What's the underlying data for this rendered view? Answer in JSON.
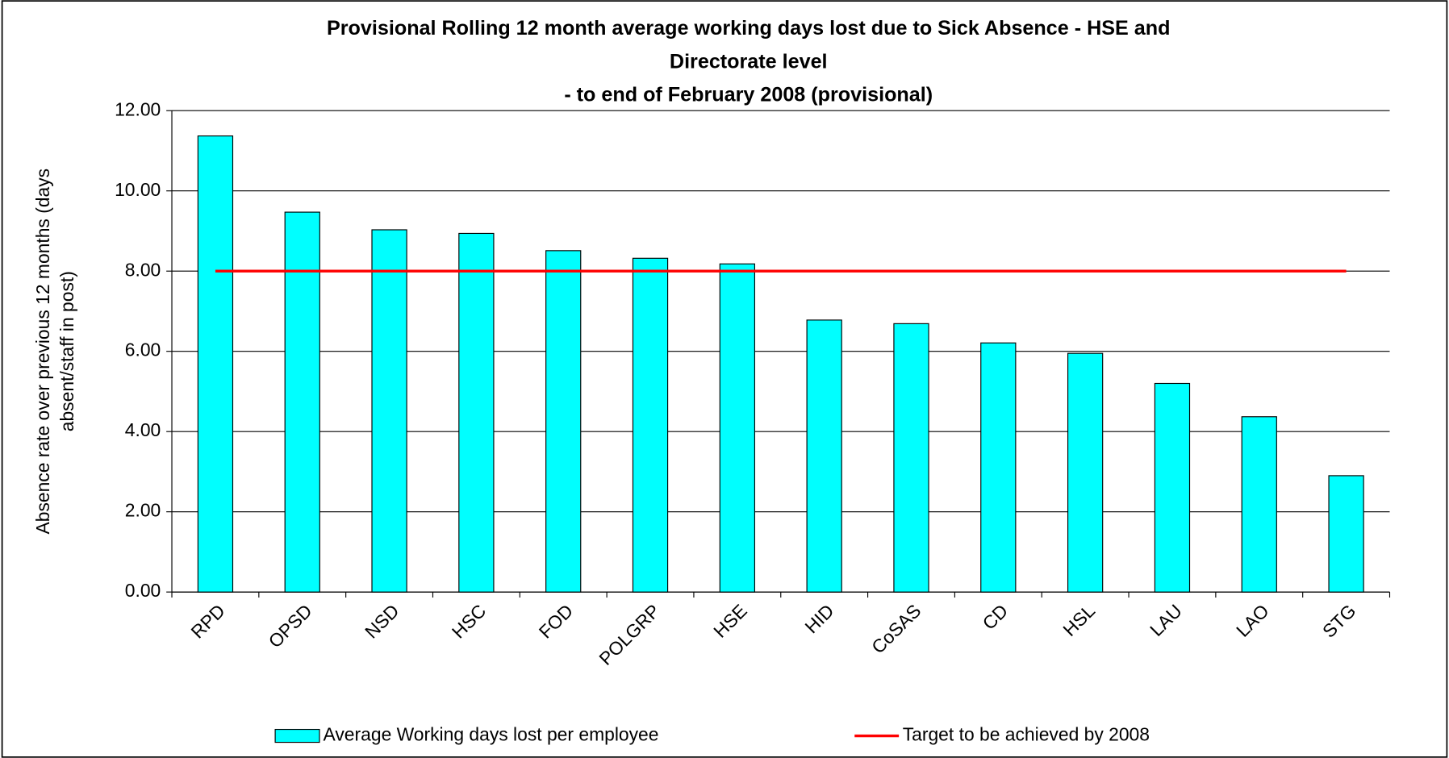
{
  "chart_data": {
    "type": "bar",
    "title": [
      "Provisional Rolling 12 month average working days lost due to Sick Absence - HSE and",
      "Directorate level",
      "- to end of February 2008 (provisional)"
    ],
    "y_label": [
      "Absence rate over previous 12 months (days",
      "absent/staff in post)"
    ],
    "categories": [
      "RPD",
      "OPSD",
      "NSD",
      "HSC",
      "FOD",
      "POLGRP",
      "HSE",
      "HID",
      "CoSAS",
      "CD",
      "HSL",
      "LAU",
      "LAO",
      "STG"
    ],
    "series": [
      {
        "name": "Average Working days lost per employee",
        "type": "bar",
        "color": "#00ffff",
        "values": [
          11.37,
          9.47,
          9.03,
          8.94,
          8.51,
          8.32,
          8.18,
          6.78,
          6.69,
          6.21,
          5.95,
          5.2,
          4.37,
          2.9
        ]
      },
      {
        "name": "Target to be achieved by 2008",
        "type": "line",
        "color": "#ff0000",
        "values": [
          8,
          8,
          8,
          8,
          8,
          8,
          8,
          8,
          8,
          8,
          8,
          8,
          8,
          8
        ]
      }
    ],
    "ylim": [
      0,
      12
    ],
    "yticks": [
      {
        "value": 0,
        "label": "0.00"
      },
      {
        "value": 2,
        "label": "2.00"
      },
      {
        "value": 4,
        "label": "4.00"
      },
      {
        "value": 6,
        "label": "6.00"
      },
      {
        "value": 8,
        "label": "8.00"
      },
      {
        "value": 10,
        "label": "10.00"
      },
      {
        "value": 12,
        "label": "12.00"
      }
    ],
    "grid": true,
    "legend": "bottom"
  }
}
